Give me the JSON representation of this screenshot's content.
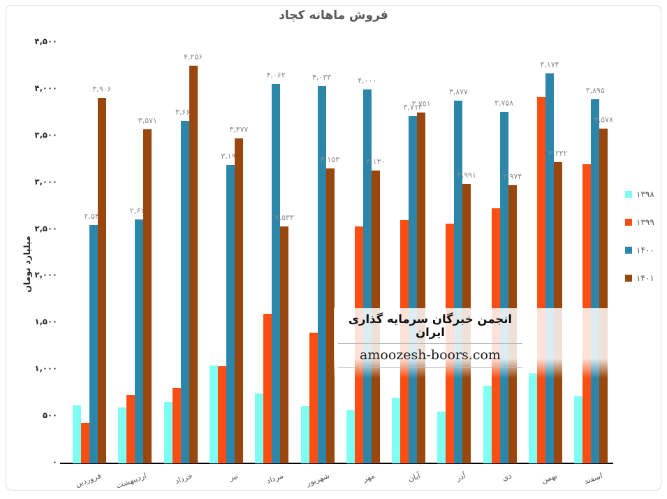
{
  "title": "فروش ماهانه کچاد",
  "watermark": {
    "line1": "انجمن خبرگان سرمایه گذاری ایران",
    "line2": "amoozesh-boors.com"
  },
  "chart_data": {
    "type": "bar",
    "title": "فروش ماهانه کچاد",
    "xlabel": "",
    "ylabel": "میلیارد تومان",
    "ylim": [
      0,
      4500
    ],
    "grid": false,
    "legend_position": "right",
    "y_ticks": [
      {
        "value": 4500,
        "label": "۴,۵۰۰"
      },
      {
        "value": 4000,
        "label": "۴,۰۰۰"
      },
      {
        "value": 3500,
        "label": "۳,۵۰۰"
      },
      {
        "value": 3000,
        "label": "۳,۰۰۰"
      },
      {
        "value": 2500,
        "label": "۲,۵۰۰"
      },
      {
        "value": 2000,
        "label": "۲,۰۰۰"
      },
      {
        "value": 1500,
        "label": "۱,۵۰۰"
      },
      {
        "value": 1000,
        "label": "۱,۰۰۰"
      },
      {
        "value": 500,
        "label": "۵۰۰"
      },
      {
        "value": 0,
        "label": "۰"
      }
    ],
    "categories": [
      "فروردین",
      "اردیبهشت",
      "خرداد",
      "تیر",
      "مرداد",
      "شهریور",
      "مهر",
      "آبان",
      "آذر",
      "دی",
      "بهمن",
      "اسفند"
    ],
    "series": [
      {
        "id": "1398",
        "name": "۱۳۹۸",
        "color": "#7ffff4",
        "values": [
          620,
          600,
          655,
          1045,
          750,
          610,
          570,
          705,
          550,
          830,
          965,
          715
        ],
        "labels": null
      },
      {
        "id": "1399",
        "name": "۱۳۹۹",
        "color": "#fc4e12",
        "values": [
          435,
          730,
          805,
          1040,
          1600,
          1400,
          2535,
          2600,
          2565,
          2725,
          3915,
          3200
        ],
        "labels": null
      },
      {
        "id": "1400",
        "name": "۱۴۰۰",
        "color": "#2c86a9",
        "values": [
          2546,
          2610,
          3662,
          3194,
          4062,
          4033,
          4000,
          3712,
          3877,
          3758,
          4174,
          3895
        ],
        "labels": [
          "۲,۵۴۶",
          "۲,۶۱۰",
          "۳,۶۶۲",
          "۳,۱۹۴",
          "۴,۰۶۲",
          "۴,۰۳۳",
          "۴,۰۰۰",
          "۳,۷۱۲",
          "۳,۸۷۷",
          "۳,۷۵۸",
          "۴,۱۷۴",
          "۳,۸۹۵"
        ]
      },
      {
        "id": "1401",
        "name": "۱۴۰۱",
        "color": "#9a470e",
        "values": [
          3906,
          3571,
          4256,
          3477,
          2533,
          3153,
          3130,
          3751,
          2991,
          2974,
          3222,
          3578
        ],
        "labels": [
          "۳,۹۰۶",
          "۳,۵۷۱",
          "۴,۲۵۶",
          "۳,۴۷۷",
          "۲,۵۳۳",
          "۳,۱۵۳",
          "۳,۱۳۰",
          "۳,۷۵۱",
          "۲,۹۹۱",
          "۲,۹۷۴",
          "۳,۲۲۲",
          "۳,۵۷۸"
        ]
      }
    ]
  }
}
